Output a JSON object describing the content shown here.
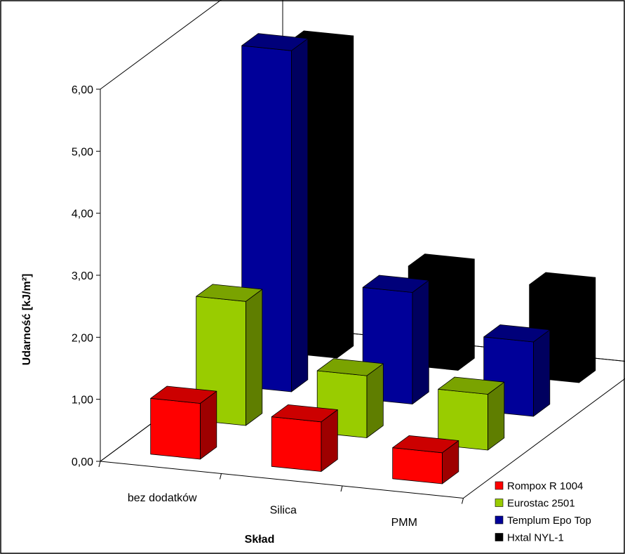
{
  "chart_data": {
    "type": "bar",
    "subtype": "3d-grouped",
    "categories": [
      "bez dodatków",
      "Silica",
      "PMM"
    ],
    "series": [
      {
        "name": "Rompox R 1004",
        "values": [
          0.9,
          0.8,
          0.5
        ],
        "color": "#FF0000"
      },
      {
        "name": "Eurostac 2501",
        "values": [
          2.0,
          1.0,
          0.9
        ],
        "color": "#99CC00"
      },
      {
        "name": "Templum Epo Top",
        "values": [
          5.5,
          1.8,
          1.2
        ],
        "color": "#000099"
      },
      {
        "name": "Hxtal NYL-1",
        "values": [
          5.0,
          1.6,
          1.5
        ],
        "color": "#000000"
      }
    ],
    "ylim": [
      0,
      6
    ],
    "yticks": [
      "0,00",
      "1,00",
      "2,00",
      "3,00",
      "4,00",
      "5,00",
      "6,00"
    ],
    "ylabel": "Udarność [kJ/m²]",
    "xlabel": "Skład",
    "legend_position": "bottom-right",
    "grid": false
  }
}
